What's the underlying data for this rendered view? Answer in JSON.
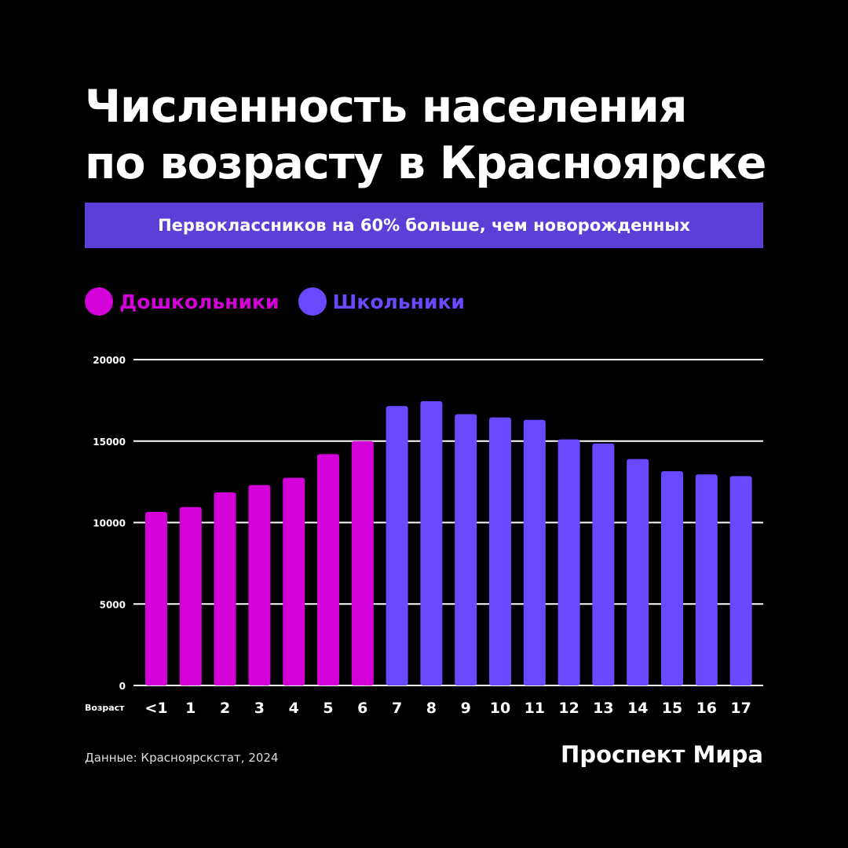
{
  "title_lines": [
    "Численность населения",
    "по возрасту в Красноярске"
  ],
  "subtitle": "Первоклассников на 60% больше, чем новорожденных",
  "source": "Данные: Красноярскстат, 2024",
  "brand": "Проспект Мира",
  "colors": {
    "preschool": "#d400d8",
    "school": "#6a48ff",
    "banner": "#5b3fd6"
  },
  "chart_data": {
    "type": "bar",
    "title": "Численность населения по возрасту в Красноярске",
    "xlabel": "Возраст",
    "ylabel": "",
    "ylim": [
      0,
      20000
    ],
    "yticks": [
      0,
      5000,
      10000,
      15000,
      20000
    ],
    "grid": true,
    "legend_position": "top-left",
    "categories": [
      "<1",
      "1",
      "2",
      "3",
      "4",
      "5",
      "6",
      "7",
      "8",
      "9",
      "10",
      "11",
      "12",
      "13",
      "14",
      "15",
      "16",
      "17"
    ],
    "values": [
      10650,
      10950,
      11850,
      12300,
      12750,
      14200,
      15000,
      17150,
      17450,
      16650,
      16450,
      16300,
      15100,
      14850,
      13900,
      13150,
      12950,
      12850
    ],
    "groups": [
      "Дошкольники",
      "Дошкольники",
      "Дошкольники",
      "Дошкольники",
      "Дошкольники",
      "Дошкольники",
      "Дошкольники",
      "Школьники",
      "Школьники",
      "Школьники",
      "Школьники",
      "Школьники",
      "Школьники",
      "Школьники",
      "Школьники",
      "Школьники",
      "Школьники",
      "Школьники"
    ],
    "series": [
      {
        "name": "Дошкольники",
        "color": "#d400d8"
      },
      {
        "name": "Школьники",
        "color": "#6a48ff"
      }
    ]
  }
}
